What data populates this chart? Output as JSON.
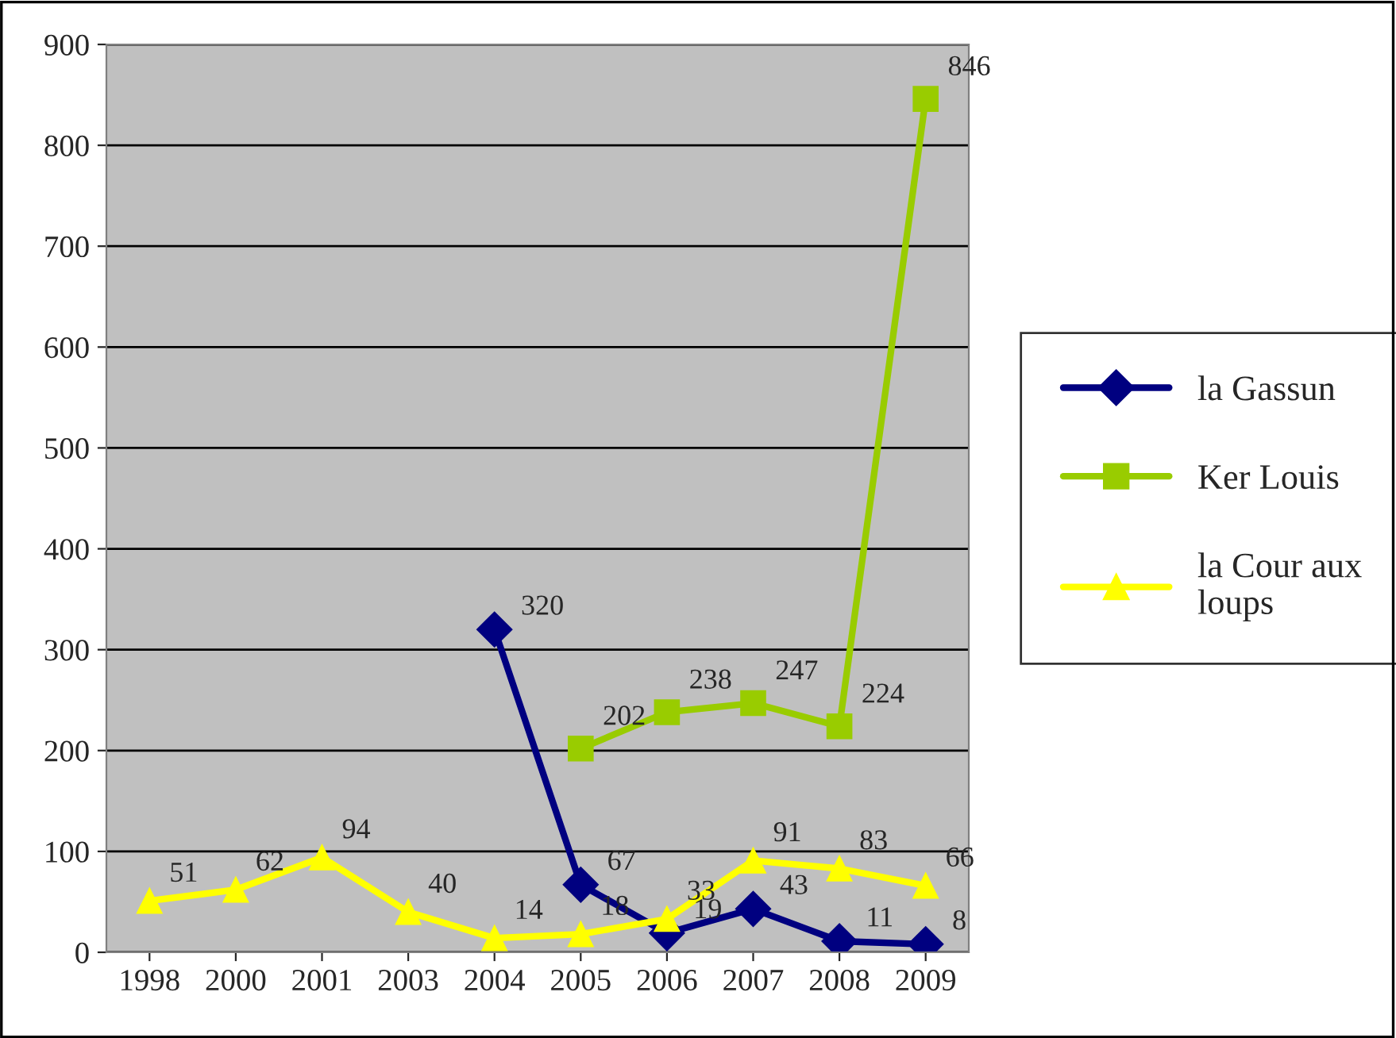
{
  "chart_data": {
    "type": "line",
    "categories": [
      "1998",
      "2000",
      "2001",
      "2003",
      "2004",
      "2005",
      "2006",
      "2007",
      "2008",
      "2009"
    ],
    "series": [
      {
        "name": "la Gassun",
        "color": "#000080",
        "marker": "diamond",
        "values": [
          null,
          null,
          null,
          null,
          320,
          67,
          19,
          43,
          11,
          8
        ]
      },
      {
        "name": "Ker Louis",
        "color": "#99cc00",
        "marker": "square",
        "values": [
          null,
          null,
          null,
          null,
          null,
          202,
          238,
          247,
          224,
          846
        ]
      },
      {
        "name": "la Cour aux loups",
        "color": "#ffff00",
        "marker": "triangle",
        "values": [
          51,
          62,
          94,
          40,
          14,
          18,
          33,
          91,
          83,
          66
        ]
      }
    ],
    "ylim": [
      0,
      900
    ],
    "yticks": [
      0,
      100,
      200,
      300,
      400,
      500,
      600,
      700,
      800,
      900
    ],
    "grid": "y",
    "legend": "right",
    "data_labels": true
  }
}
